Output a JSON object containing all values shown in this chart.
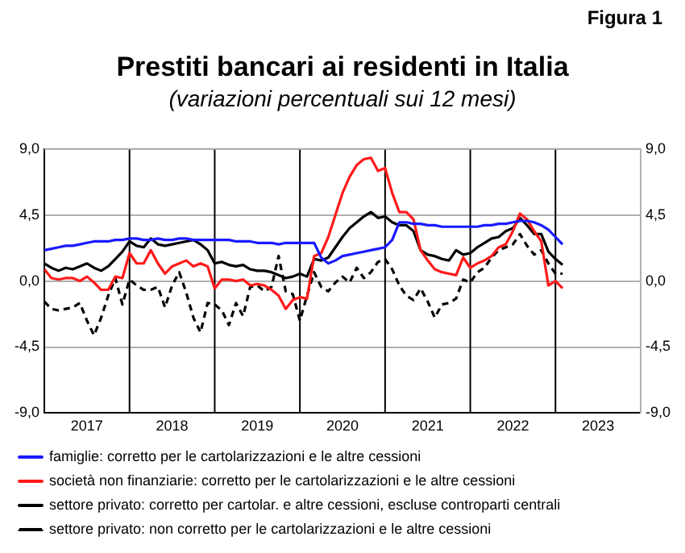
{
  "chart_data": {
    "type": "line",
    "title": "Prestiti bancari ai residenti in Italia",
    "subtitle": "(variazioni percentuali sui 12 mesi)",
    "annotations": [
      "Figura 1"
    ],
    "x": [
      "2017-01",
      "2017-02",
      "2017-03",
      "2017-04",
      "2017-05",
      "2017-06",
      "2017-07",
      "2017-08",
      "2017-09",
      "2017-10",
      "2017-11",
      "2017-12",
      "2018-01",
      "2018-02",
      "2018-03",
      "2018-04",
      "2018-05",
      "2018-06",
      "2018-07",
      "2018-08",
      "2018-09",
      "2018-10",
      "2018-11",
      "2018-12",
      "2019-01",
      "2019-02",
      "2019-03",
      "2019-04",
      "2019-05",
      "2019-06",
      "2019-07",
      "2019-08",
      "2019-09",
      "2019-10",
      "2019-11",
      "2019-12",
      "2020-01",
      "2020-02",
      "2020-03",
      "2020-04",
      "2020-05",
      "2020-06",
      "2020-07",
      "2020-08",
      "2020-09",
      "2020-10",
      "2020-11",
      "2020-12",
      "2021-01",
      "2021-02",
      "2021-03",
      "2021-04",
      "2021-05",
      "2021-06",
      "2021-07",
      "2021-08",
      "2021-09",
      "2021-10",
      "2021-11",
      "2021-12",
      "2022-01",
      "2022-02",
      "2022-03",
      "2022-04",
      "2022-05",
      "2022-06",
      "2022-07",
      "2022-08",
      "2022-09",
      "2022-10",
      "2022-11",
      "2022-12",
      "2023-01",
      "2023-02"
    ],
    "series": [
      {
        "name": "famiglie: corretto per le cartolarizzazioni e le altre cessioni",
        "color": "#1a1aff",
        "values": [
          2.1,
          2.2,
          2.3,
          2.4,
          2.4,
          2.5,
          2.6,
          2.7,
          2.7,
          2.7,
          2.8,
          2.8,
          2.9,
          2.9,
          2.8,
          2.8,
          2.9,
          2.8,
          2.8,
          2.9,
          2.9,
          2.8,
          2.8,
          2.8,
          2.8,
          2.8,
          2.8,
          2.7,
          2.7,
          2.7,
          2.6,
          2.6,
          2.6,
          2.5,
          2.6,
          2.6,
          2.6,
          2.6,
          2.6,
          1.6,
          1.2,
          1.4,
          1.7,
          1.8,
          1.9,
          2.0,
          2.1,
          2.2,
          2.3,
          2.8,
          4.0,
          4.0,
          3.9,
          3.9,
          3.8,
          3.8,
          3.7,
          3.7,
          3.7,
          3.7,
          3.7,
          3.7,
          3.8,
          3.8,
          3.9,
          3.9,
          4.0,
          4.1,
          4.1,
          4.0,
          3.8,
          3.5,
          3.0,
          2.5
        ]
      },
      {
        "name": "società non finanziarie: corretto per le cartolarizzazioni e le altre cessioni",
        "color": "#ff1a1a",
        "values": [
          0.8,
          0.2,
          0.1,
          0.2,
          0.2,
          0.0,
          0.3,
          -0.1,
          -0.6,
          -0.6,
          0.3,
          0.2,
          1.9,
          1.2,
          1.2,
          2.1,
          1.2,
          0.5,
          1.0,
          1.2,
          1.4,
          1.0,
          1.2,
          1.0,
          -0.5,
          0.1,
          0.1,
          0.0,
          0.1,
          -0.3,
          -0.2,
          -0.3,
          -0.6,
          -1.0,
          -1.9,
          -1.3,
          -1.1,
          -1.2,
          1.7,
          1.9,
          3.0,
          4.5,
          6.0,
          7.1,
          7.9,
          8.3,
          8.4,
          7.5,
          7.7,
          6.0,
          4.7,
          4.7,
          4.2,
          2.1,
          1.4,
          0.8,
          0.6,
          0.5,
          0.4,
          1.6,
          0.9,
          1.2,
          1.4,
          1.7,
          2.3,
          2.5,
          3.4,
          4.6,
          4.2,
          3.4,
          2.7,
          -0.3,
          0.0,
          -0.5
        ]
      },
      {
        "name": "settore privato: corretto per cartolar. e altre cessioni, escluse controparti centrali",
        "color": "#000000",
        "values": [
          1.2,
          0.9,
          0.7,
          0.9,
          0.8,
          1.0,
          1.2,
          0.9,
          0.7,
          1.0,
          1.5,
          2.0,
          2.7,
          2.4,
          2.3,
          2.9,
          2.5,
          2.4,
          2.5,
          2.6,
          2.7,
          2.8,
          2.5,
          2.1,
          1.2,
          1.3,
          1.1,
          1.0,
          1.1,
          0.8,
          0.7,
          0.7,
          0.6,
          0.4,
          0.2,
          0.3,
          0.5,
          0.3,
          1.5,
          1.4,
          1.6,
          2.3,
          3.0,
          3.6,
          4.0,
          4.4,
          4.7,
          4.3,
          4.4,
          4.0,
          3.8,
          3.8,
          3.4,
          2.1,
          1.8,
          1.7,
          1.5,
          1.4,
          2.1,
          1.8,
          1.9,
          2.3,
          2.6,
          2.9,
          3.0,
          3.4,
          3.6,
          4.3,
          3.8,
          3.2,
          3.2,
          2.0,
          1.5,
          1.1
        ]
      },
      {
        "name": "settore privato: non corretto per le cartolarizzazioni e le altre cessioni",
        "color": "#000000",
        "line_style": "dashed",
        "values": [
          -1.4,
          -1.9,
          -2.0,
          -1.9,
          -1.8,
          -1.5,
          -2.7,
          -3.7,
          -2.5,
          -1.0,
          0.2,
          -1.6,
          0.1,
          -0.3,
          -0.6,
          -0.6,
          -0.4,
          -1.8,
          -0.3,
          0.6,
          -0.8,
          -2.5,
          -3.5,
          -1.5,
          -1.6,
          -2.0,
          -3.0,
          -1.5,
          -2.4,
          -0.4,
          -0.3,
          -0.7,
          -0.4,
          1.7,
          -0.7,
          -0.9,
          -2.7,
          -1.0,
          0.6,
          -0.4,
          -0.7,
          -0.1,
          0.3,
          -0.1,
          0.9,
          0.2,
          0.6,
          1.3,
          1.5,
          0.8,
          -0.3,
          -1.0,
          -1.3,
          -0.5,
          -1.4,
          -2.5,
          -1.6,
          -1.5,
          -1.2,
          0.1,
          -0.1,
          0.6,
          0.9,
          1.6,
          2.1,
          2.3,
          2.5,
          3.2,
          2.4,
          1.8,
          2.1,
          1.2,
          0.5,
          0.5
        ]
      }
    ],
    "xlim": [
      "2017-01",
      "2024-01"
    ],
    "xticks": [
      {
        "value": "2017-07",
        "label": "2017"
      },
      {
        "value": "2018-07",
        "label": "2018"
      },
      {
        "value": "2019-07",
        "label": "2019"
      },
      {
        "value": "2020-07",
        "label": "2020"
      },
      {
        "value": "2021-07",
        "label": "2021"
      },
      {
        "value": "2022-07",
        "label": "2022"
      },
      {
        "value": "2023-07",
        "label": "2023"
      }
    ],
    "ylim": [
      -9,
      9
    ],
    "yticks": [
      {
        "value": -9,
        "label": "-9,0"
      },
      {
        "value": -4.5,
        "label": "-4,5"
      },
      {
        "value": 0,
        "label": "0,0"
      },
      {
        "value": 4.5,
        "label": "4,5"
      },
      {
        "value": 9,
        "label": "9,0"
      }
    ],
    "y2lim": [
      -9,
      9
    ],
    "y2ticks": [
      {
        "value": -9,
        "label": "-9,0"
      },
      {
        "value": -4.5,
        "label": "-4,5"
      },
      {
        "value": 0,
        "label": "0,0"
      },
      {
        "value": 4.5,
        "label": "4,5"
      },
      {
        "value": 9,
        "label": "9,0"
      }
    ],
    "ref_lines": [
      {
        "axis": "x",
        "value": "2018-01",
        "color": "#000000"
      },
      {
        "axis": "x",
        "value": "2019-01",
        "color": "#000000"
      },
      {
        "axis": "x",
        "value": "2020-01",
        "color": "#000000"
      },
      {
        "axis": "x",
        "value": "2021-01",
        "color": "#000000"
      },
      {
        "axis": "x",
        "value": "2022-01",
        "color": "#000000"
      },
      {
        "axis": "x",
        "value": "2023-01",
        "color": "#000000"
      }
    ],
    "grid": "y",
    "legend": "bottom",
    "marker": "none"
  }
}
